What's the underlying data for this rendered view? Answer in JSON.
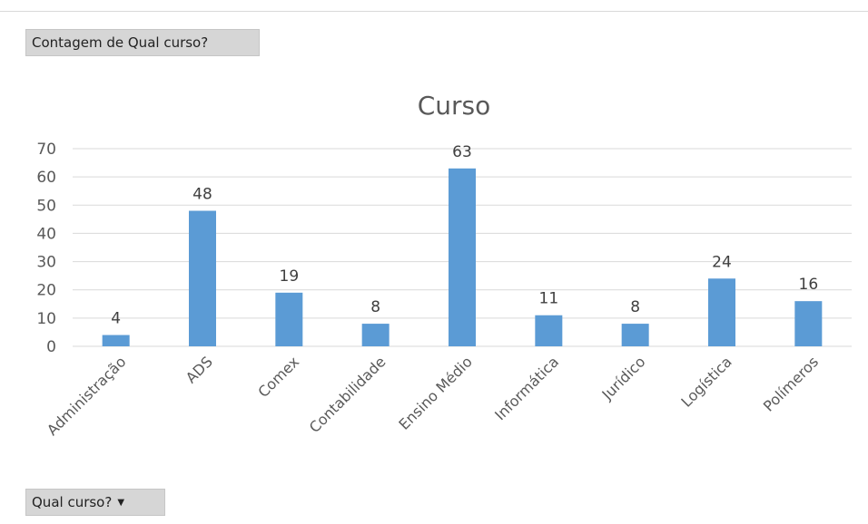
{
  "pivot": {
    "values_field": "Contagem de Qual curso?",
    "axis_field": "Qual curso?"
  },
  "chart_data": {
    "type": "bar",
    "title": "Curso",
    "categories": [
      "Administração",
      "ADS",
      "Comex",
      "Contabilidade",
      "Ensino Médio",
      "Informática",
      "Jurídico",
      "Logística",
      "Polímeros"
    ],
    "values": [
      4,
      48,
      19,
      8,
      63,
      11,
      8,
      24,
      16
    ],
    "ylim": [
      0,
      70
    ],
    "yticks": [
      0,
      10,
      20,
      30,
      40,
      50,
      60,
      70
    ],
    "grid": true,
    "legend": "none",
    "data_labels": true,
    "bar_color": "#5b9bd5"
  }
}
